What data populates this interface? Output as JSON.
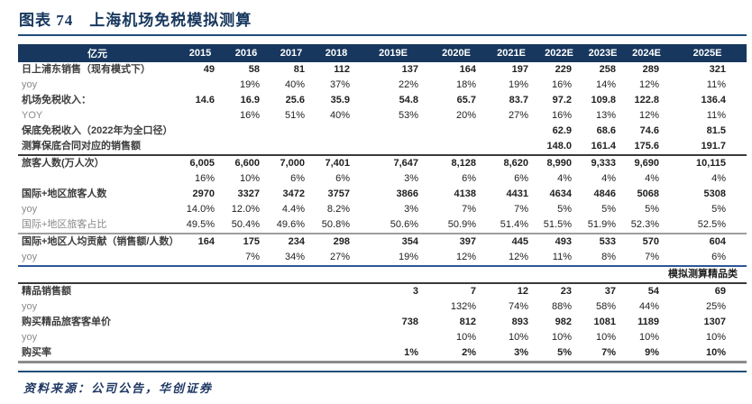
{
  "title": "图表 74　上海机场免税模拟测算",
  "source_note": "资料来源：公司公告，华创证券",
  "colors": {
    "header_bg": "#17375E",
    "title_text": "#17375E",
    "rule_navy": "#1F4E79",
    "mid_rule_blue": "#2F5597",
    "mid_rule_gray": "#9E9E9E",
    "mid_rule_dark": "#3A3A3A",
    "muted_text": "#8A8A8A"
  },
  "table": {
    "unit_header": "亿元",
    "year_headers": [
      "2015",
      "2016",
      "2017",
      "2018",
      "2019E",
      "2020E",
      "2021E",
      "2022E",
      "2023E",
      "2024E",
      "2025E"
    ],
    "rows": [
      {
        "label": "日上浦东销售（现有模式下）",
        "emphasis": "bold",
        "values": [
          "49",
          "58",
          "81",
          "112",
          "137",
          "164",
          "197",
          "229",
          "258",
          "289",
          "321"
        ]
      },
      {
        "label": "yoy",
        "emphasis": "muted",
        "values": [
          "",
          "19%",
          "40%",
          "37%",
          "22%",
          "18%",
          "19%",
          "16%",
          "14%",
          "12%",
          "11%"
        ]
      },
      {
        "label": "机场免税收入：",
        "emphasis": "bold",
        "values": [
          "14.6",
          "16.9",
          "25.6",
          "35.9",
          "54.8",
          "65.7",
          "83.7",
          "97.2",
          "109.8",
          "122.8",
          "136.4"
        ]
      },
      {
        "label": "YOY",
        "emphasis": "muted",
        "values": [
          "",
          "16%",
          "51%",
          "40%",
          "53%",
          "20%",
          "27%",
          "16%",
          "13%",
          "12%",
          "11%"
        ]
      },
      {
        "label": "保底免税收入（2022年为全口径）",
        "emphasis": "bold",
        "values": [
          "",
          "",
          "",
          "",
          "",
          "",
          "",
          "62.9",
          "68.6",
          "74.6",
          "81.5"
        ]
      },
      {
        "label": "测算保底合同对应的销售额",
        "emphasis": "bold",
        "divider": "dark",
        "values": [
          "",
          "",
          "",
          "",
          "",
          "",
          "",
          "148.0",
          "161.4",
          "175.6",
          "191.7"
        ]
      },
      {
        "label": "旅客人数(万人次）",
        "emphasis": "bold",
        "values": [
          "6,005",
          "6,600",
          "7,000",
          "7,401",
          "7,647",
          "8,128",
          "8,620",
          "8,990",
          "9,333",
          "9,690",
          "10,115"
        ]
      },
      {
        "label": "",
        "emphasis": "muted",
        "values": [
          "16%",
          "10%",
          "6%",
          "6%",
          "3%",
          "6%",
          "6%",
          "4%",
          "4%",
          "4%",
          "4%"
        ]
      },
      {
        "label": "国际+地区旅客人数",
        "emphasis": "bold",
        "values": [
          "2970",
          "3327",
          "3472",
          "3757",
          "3866",
          "4138",
          "4431",
          "4634",
          "4846",
          "5068",
          "5308"
        ]
      },
      {
        "label": "yoy",
        "emphasis": "muted",
        "values": [
          "14.0%",
          "12.0%",
          "4.4%",
          "8.2%",
          "3%",
          "7%",
          "7%",
          "5%",
          "5%",
          "5%",
          "5%"
        ]
      },
      {
        "label": "国际+地区旅客占比",
        "emphasis": "muted",
        "divider": "gray",
        "values": [
          "49.5%",
          "50.4%",
          "49.6%",
          "50.8%",
          "50.6%",
          "50.9%",
          "51.4%",
          "51.5%",
          "51.9%",
          "52.3%",
          "52.5%"
        ]
      },
      {
        "label": "国际+地区人均贡献（销售额/人数）",
        "emphasis": "bold",
        "values": [
          "164",
          "175",
          "234",
          "298",
          "354",
          "397",
          "445",
          "493",
          "533",
          "570",
          "604"
        ]
      },
      {
        "label": "yoy",
        "emphasis": "muted",
        "divider": "blue",
        "values": [
          "",
          "7%",
          "34%",
          "27%",
          "19%",
          "12%",
          "12%",
          "11%",
          "8%",
          "7%",
          "6%"
        ]
      },
      {
        "type": "section",
        "label": "模拟测算精品类",
        "divider": "dark"
      },
      {
        "label": "精品销售额",
        "emphasis": "bold",
        "values": [
          "",
          "",
          "",
          "",
          "3",
          "7",
          "12",
          "23",
          "37",
          "54",
          "69"
        ]
      },
      {
        "label": "yoy",
        "emphasis": "muted",
        "values": [
          "",
          "",
          "",
          "",
          "",
          "132%",
          "74%",
          "88%",
          "58%",
          "44%",
          "25%"
        ]
      },
      {
        "label": "购买精品旅客客单价",
        "emphasis": "bold",
        "values": [
          "",
          "",
          "",
          "",
          "738",
          "812",
          "893",
          "982",
          "1081",
          "1189",
          "1307"
        ]
      },
      {
        "label": "yoy",
        "emphasis": "muted",
        "values": [
          "",
          "",
          "",
          "",
          "",
          "10%",
          "10%",
          "10%",
          "10%",
          "10%",
          "10%"
        ]
      },
      {
        "label": "购买率",
        "emphasis": "bold",
        "divider": "graythick",
        "values": [
          "",
          "",
          "",
          "",
          "1%",
          "2%",
          "3%",
          "5%",
          "7%",
          "9%",
          "10%"
        ]
      }
    ]
  }
}
